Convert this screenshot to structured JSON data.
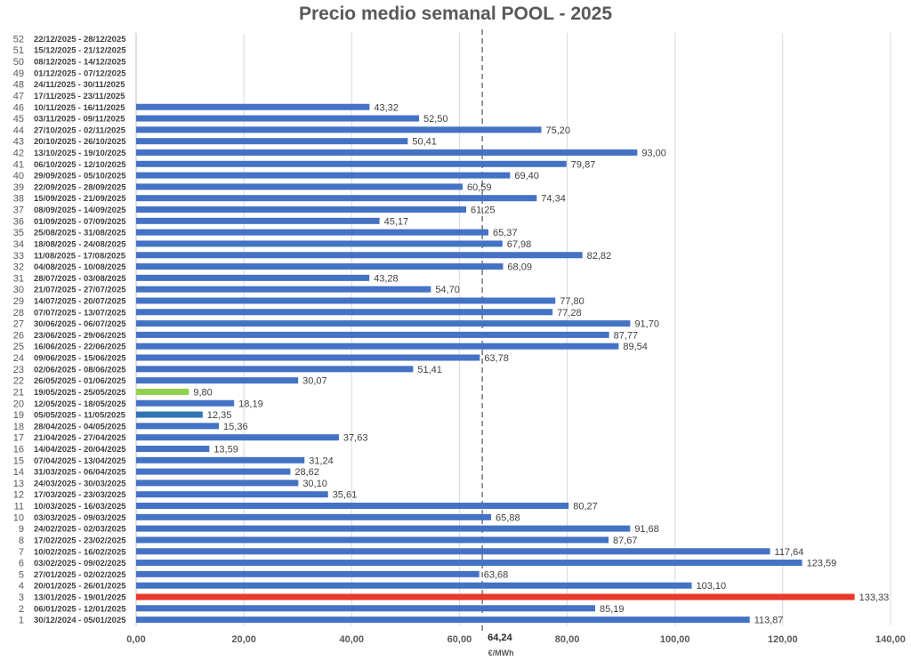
{
  "chart_data": {
    "type": "bar",
    "orientation": "horizontal",
    "title": "Precio medio semanal POOL - 2025",
    "xlabel": "€/MWh",
    "xlim": [
      0,
      140
    ],
    "x_ticks": [
      "0,00",
      "20,00",
      "40,00",
      "60,00",
      "80,00",
      "100,00",
      "120,00",
      "140,00"
    ],
    "grid": "vertical",
    "average": {
      "value": 64.24,
      "label": "64,24"
    },
    "colors": {
      "default": "#4472C4",
      "highlight_max": "#E8392B",
      "highlight_min": "#92D050",
      "highlight_alt": "#2E75B6",
      "average_line": "#7F7F7F"
    },
    "weeks": [
      {
        "num": "1",
        "label": "30/12/2024 - 05/01/2025",
        "value": 113.87,
        "value_label": "113,87",
        "color": "default"
      },
      {
        "num": "2",
        "label": "06/01/2025 - 12/01/2025",
        "value": 85.19,
        "value_label": "85,19",
        "color": "default"
      },
      {
        "num": "3",
        "label": "13/01/2025 - 19/01/2025",
        "value": 133.33,
        "value_label": "133,33",
        "color": "highlight_max"
      },
      {
        "num": "4",
        "label": "20/01/2025 - 26/01/2025",
        "value": 103.1,
        "value_label": "103,10",
        "color": "default"
      },
      {
        "num": "5",
        "label": "27/01/2025 - 02/02/2025",
        "value": 63.68,
        "value_label": "63,68",
        "color": "default"
      },
      {
        "num": "6",
        "label": "03/02/2025 - 09/02/2025",
        "value": 123.59,
        "value_label": "123,59",
        "color": "default"
      },
      {
        "num": "7",
        "label": "10/02/2025 - 16/02/2025",
        "value": 117.64,
        "value_label": "117,64",
        "color": "default"
      },
      {
        "num": "8",
        "label": "17/02/2025 - 23/02/2025",
        "value": 87.67,
        "value_label": "87,67",
        "color": "default"
      },
      {
        "num": "9",
        "label": "24/02/2025 - 02/03/2025",
        "value": 91.68,
        "value_label": "91,68",
        "color": "default"
      },
      {
        "num": "10",
        "label": "03/03/2025 - 09/03/2025",
        "value": 65.88,
        "value_label": "65,88",
        "color": "default"
      },
      {
        "num": "11",
        "label": "10/03/2025 - 16/03/2025",
        "value": 80.27,
        "value_label": "80,27",
        "color": "default"
      },
      {
        "num": "12",
        "label": "17/03/2025 - 23/03/2025",
        "value": 35.61,
        "value_label": "35,61",
        "color": "default"
      },
      {
        "num": "13",
        "label": "24/03/2025 - 30/03/2025",
        "value": 30.1,
        "value_label": "30,10",
        "color": "default"
      },
      {
        "num": "14",
        "label": "31/03/2025 - 06/04/2025",
        "value": 28.62,
        "value_label": "28,62",
        "color": "default"
      },
      {
        "num": "15",
        "label": "07/04/2025 - 13/04/2025",
        "value": 31.24,
        "value_label": "31,24",
        "color": "default"
      },
      {
        "num": "16",
        "label": "14/04/2025 - 20/04/2025",
        "value": 13.59,
        "value_label": "13,59",
        "color": "default"
      },
      {
        "num": "17",
        "label": "21/04/2025 - 27/04/2025",
        "value": 37.63,
        "value_label": "37,63",
        "color": "default"
      },
      {
        "num": "18",
        "label": "28/04/2025 - 04/05/2025",
        "value": 15.36,
        "value_label": "15,36",
        "color": "default"
      },
      {
        "num": "19",
        "label": "05/05/2025 - 11/05/2025",
        "value": 12.35,
        "value_label": "12,35",
        "color": "highlight_alt"
      },
      {
        "num": "20",
        "label": "12/05/2025 - 18/05/2025",
        "value": 18.19,
        "value_label": "18,19",
        "color": "default"
      },
      {
        "num": "21",
        "label": "19/05/2025 - 25/05/2025",
        "value": 9.8,
        "value_label": "9,80",
        "color": "highlight_min"
      },
      {
        "num": "22",
        "label": "26/05/2025 - 01/06/2025",
        "value": 30.07,
        "value_label": "30,07",
        "color": "default"
      },
      {
        "num": "23",
        "label": "02/06/2025 - 08/06/2025",
        "value": 51.41,
        "value_label": "51,41",
        "color": "default"
      },
      {
        "num": "24",
        "label": "09/06/2025 - 15/06/2025",
        "value": 63.78,
        "value_label": "63,78",
        "color": "default"
      },
      {
        "num": "25",
        "label": "16/06/2025 - 22/06/2025",
        "value": 89.54,
        "value_label": "89,54",
        "color": "default"
      },
      {
        "num": "26",
        "label": "23/06/2025 - 29/06/2025",
        "value": 87.77,
        "value_label": "87,77",
        "color": "default"
      },
      {
        "num": "27",
        "label": "30/06/2025 - 06/07/2025",
        "value": 91.7,
        "value_label": "91,70",
        "color": "default"
      },
      {
        "num": "28",
        "label": "07/07/2025 - 13/07/2025",
        "value": 77.28,
        "value_label": "77,28",
        "color": "default"
      },
      {
        "num": "29",
        "label": "14/07/2025 - 20/07/2025",
        "value": 77.8,
        "value_label": "77,80",
        "color": "default"
      },
      {
        "num": "30",
        "label": "21/07/2025 - 27/07/2025",
        "value": 54.7,
        "value_label": "54,70",
        "color": "default"
      },
      {
        "num": "31",
        "label": "28/07/2025 - 03/08/2025",
        "value": 43.28,
        "value_label": "43,28",
        "color": "default"
      },
      {
        "num": "32",
        "label": "04/08/2025 - 10/08/2025",
        "value": 68.09,
        "value_label": "68,09",
        "color": "default"
      },
      {
        "num": "33",
        "label": "11/08/2025 - 17/08/2025",
        "value": 82.82,
        "value_label": "82,82",
        "color": "default"
      },
      {
        "num": "34",
        "label": "18/08/2025 - 24/08/2025",
        "value": 67.98,
        "value_label": "67,98",
        "color": "default"
      },
      {
        "num": "35",
        "label": "25/08/2025 - 31/08/2025",
        "value": 65.37,
        "value_label": "65,37",
        "color": "default"
      },
      {
        "num": "36",
        "label": "01/09/2025 - 07/09/2025",
        "value": 45.17,
        "value_label": "45,17",
        "color": "default"
      },
      {
        "num": "37",
        "label": "08/09/2025 - 14/09/2025",
        "value": 61.25,
        "value_label": "61,25",
        "color": "default"
      },
      {
        "num": "38",
        "label": "15/09/2025 - 21/09/2025",
        "value": 74.34,
        "value_label": "74,34",
        "color": "default"
      },
      {
        "num": "39",
        "label": "22/09/2025 - 28/09/2025",
        "value": 60.59,
        "value_label": "60,59",
        "color": "default"
      },
      {
        "num": "40",
        "label": "29/09/2025 - 05/10/2025",
        "value": 69.4,
        "value_label": "69,40",
        "color": "default"
      },
      {
        "num": "41",
        "label": "06/10/2025 - 12/10/2025",
        "value": 79.87,
        "value_label": "79,87",
        "color": "default"
      },
      {
        "num": "42",
        "label": "13/10/2025 - 19/10/2025",
        "value": 93.0,
        "value_label": "93,00",
        "color": "default"
      },
      {
        "num": "43",
        "label": "20/10/2025 - 26/10/2025",
        "value": 50.41,
        "value_label": "50,41",
        "color": "default"
      },
      {
        "num": "44",
        "label": "27/10/2025 - 02/11/2025",
        "value": 75.2,
        "value_label": "75,20",
        "color": "default"
      },
      {
        "num": "45",
        "label": "03/11/2025 - 09/11/2025",
        "value": 52.5,
        "value_label": "52,50",
        "color": "default"
      },
      {
        "num": "46",
        "label": "10/11/2025 - 16/11/2025",
        "value": 43.32,
        "value_label": "43,32",
        "color": "default"
      },
      {
        "num": "47",
        "label": "17/11/2025 - 23/11/2025",
        "value": null,
        "value_label": "",
        "color": "default"
      },
      {
        "num": "48",
        "label": "24/11/2025 - 30/11/2025",
        "value": null,
        "value_label": "",
        "color": "default"
      },
      {
        "num": "49",
        "label": "01/12/2025 - 07/12/2025",
        "value": null,
        "value_label": "",
        "color": "default"
      },
      {
        "num": "50",
        "label": "08/12/2025 - 14/12/2025",
        "value": null,
        "value_label": "",
        "color": "default"
      },
      {
        "num": "51",
        "label": "15/12/2025 - 21/12/2025",
        "value": null,
        "value_label": "",
        "color": "default"
      },
      {
        "num": "52",
        "label": "22/12/2025 - 28/12/2025",
        "value": null,
        "value_label": "",
        "color": "default"
      }
    ]
  }
}
